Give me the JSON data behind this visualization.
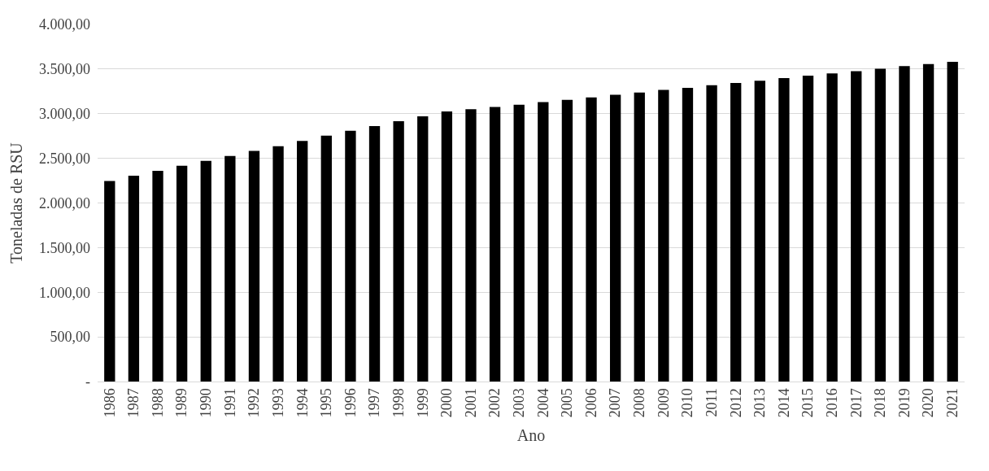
{
  "chart_data": {
    "type": "bar",
    "xlabel": "Ano",
    "ylabel": "Toneladas de RSU",
    "categories": [
      "1986",
      "1987",
      "1988",
      "1989",
      "1990",
      "1991",
      "1992",
      "1993",
      "1994",
      "1995",
      "1996",
      "1997",
      "1998",
      "1999",
      "2000",
      "2001",
      "2002",
      "2003",
      "2004",
      "2005",
      "2006",
      "2007",
      "2008",
      "2009",
      "2010",
      "2011",
      "2012",
      "2013",
      "2014",
      "2015",
      "2016",
      "2017",
      "2018",
      "2019",
      "2020",
      "2021"
    ],
    "values": [
      2247,
      2305,
      2360,
      2416,
      2471,
      2526,
      2584,
      2636,
      2695,
      2753,
      2808,
      2860,
      2915,
      2970,
      3025,
      3050,
      3075,
      3100,
      3130,
      3156,
      3182,
      3211,
      3237,
      3266,
      3289,
      3318,
      3344,
      3370,
      3399,
      3425,
      3451,
      3477,
      3503,
      3532,
      3555,
      3581
    ],
    "color": "#000000",
    "ylim": [
      0,
      4000
    ],
    "yticks": [
      {
        "value": 0,
        "label": "-"
      },
      {
        "value": 500,
        "label": "500,00"
      },
      {
        "value": 1000,
        "label": "1.000,00"
      },
      {
        "value": 1500,
        "label": "1.500,00"
      },
      {
        "value": 2000,
        "label": "2.000,00"
      },
      {
        "value": 2500,
        "label": "2.500,00"
      },
      {
        "value": 3000,
        "label": "3.000,00"
      },
      {
        "value": 3500,
        "label": "3.500,00"
      },
      {
        "value": 4000,
        "label": "4.000,00"
      }
    ],
    "grid": "y",
    "legend": false
  }
}
